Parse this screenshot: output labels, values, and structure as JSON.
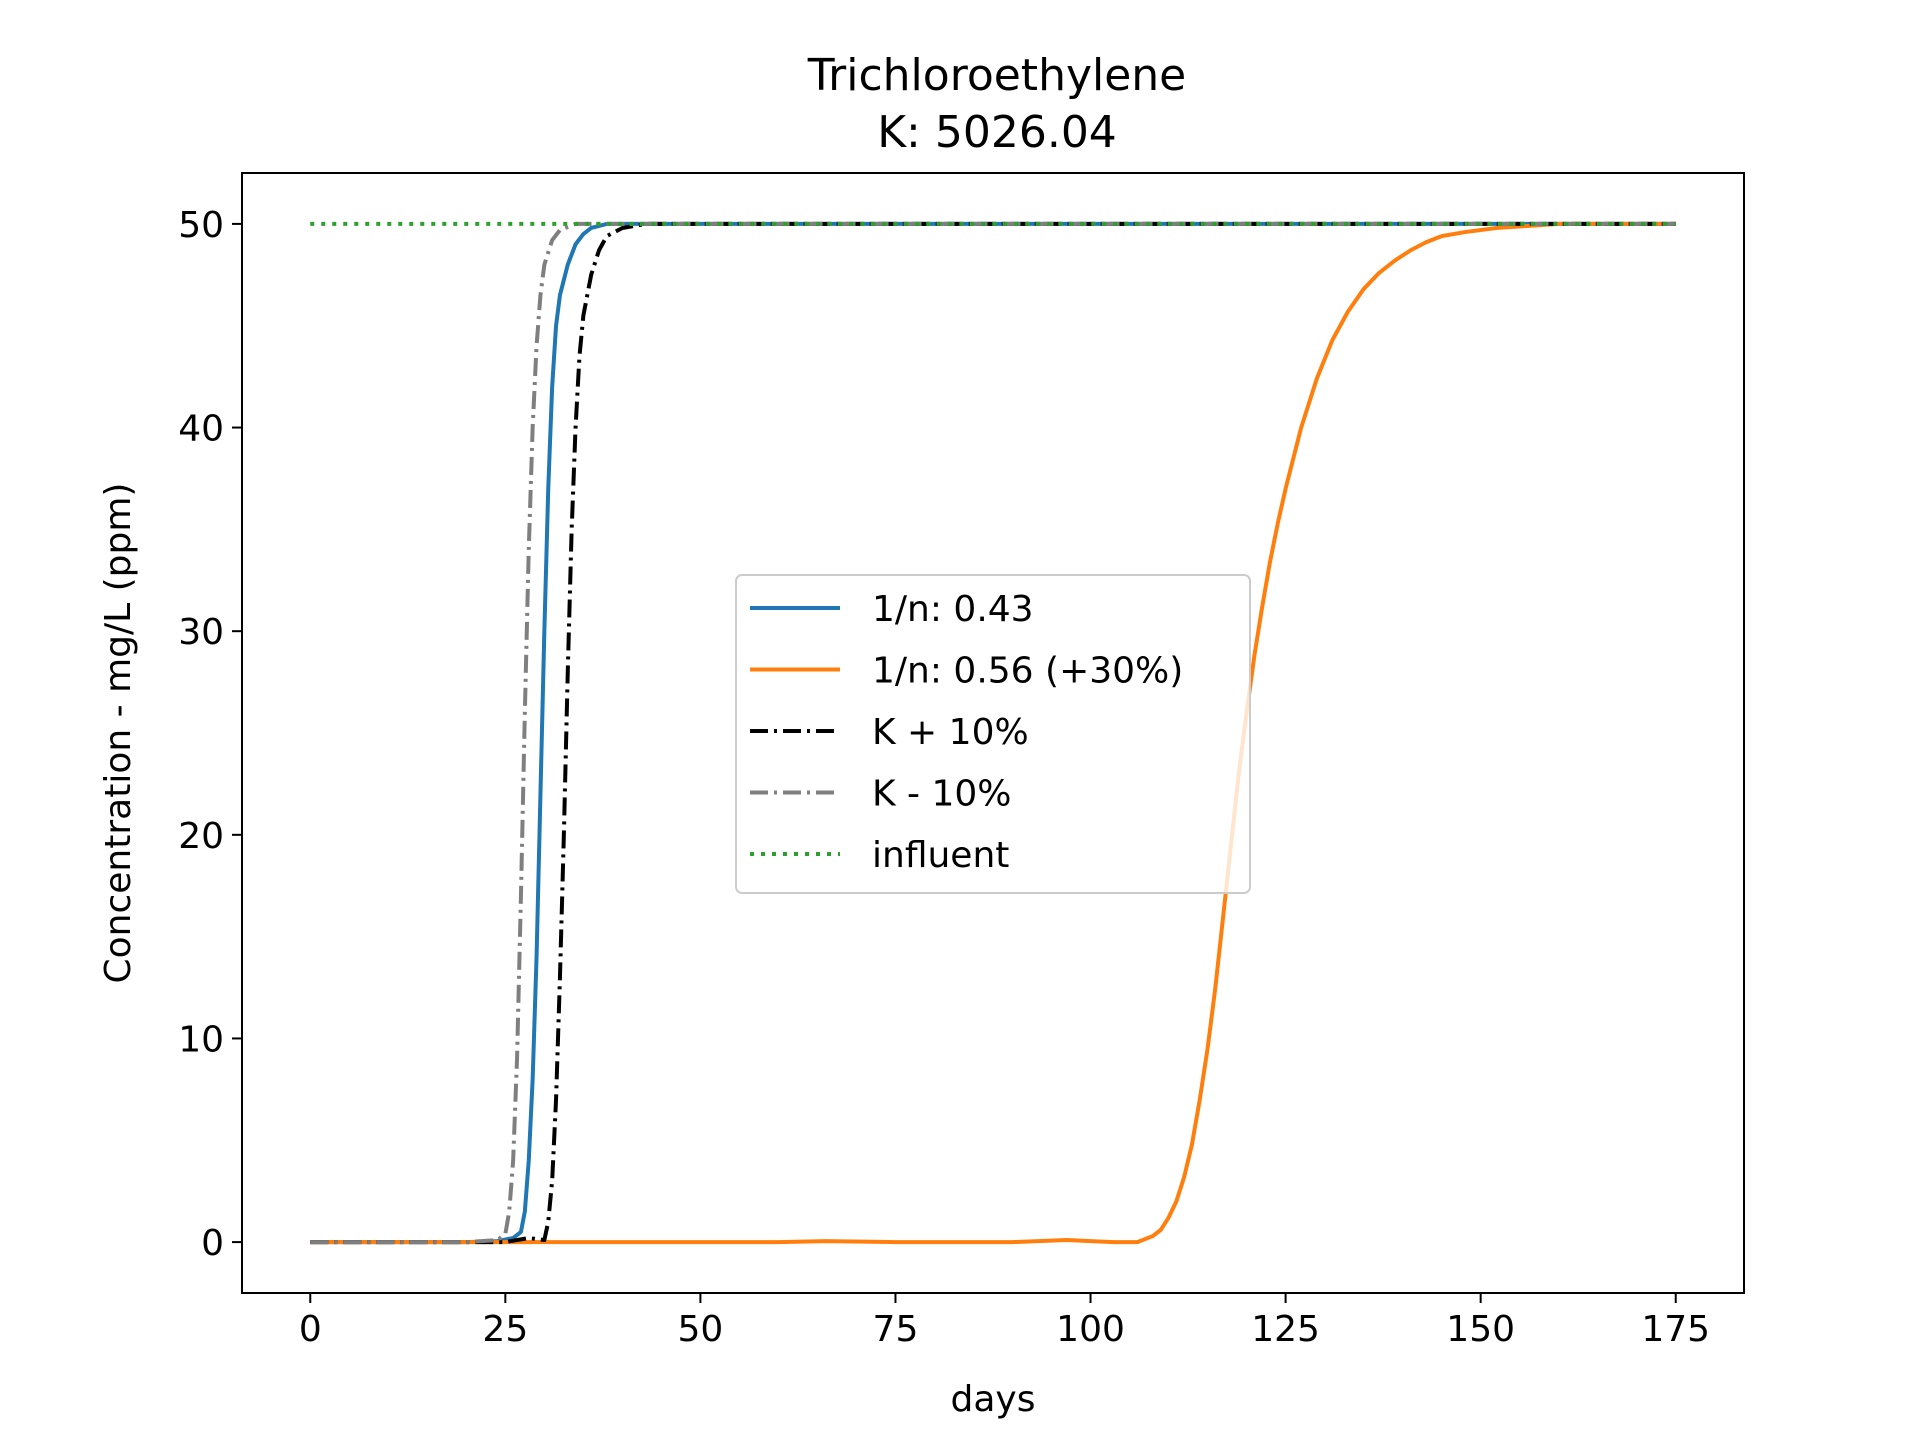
{
  "chart_data": {
    "type": "line",
    "title": "Trichloroethylene",
    "subtitle": "K: 5026.04",
    "xlabel": "days",
    "ylabel": "Concentration - mg/L (ppm)",
    "xlim": [
      -8.75,
      183.75
    ],
    "ylim": [
      -2.5,
      52.5
    ],
    "xticks": [
      0,
      25,
      50,
      75,
      100,
      125,
      150,
      175
    ],
    "yticks": [
      0,
      10,
      20,
      30,
      40,
      50
    ],
    "grid": false,
    "legend_position": "center",
    "series": [
      {
        "name": "1/n: 0.43",
        "color": "#1f77b4",
        "style": "solid",
        "points": [
          [
            0,
            0
          ],
          [
            5,
            0
          ],
          [
            10,
            0
          ],
          [
            15,
            0
          ],
          [
            20,
            0
          ],
          [
            24,
            0.05
          ],
          [
            26,
            0.2
          ],
          [
            27,
            0.5
          ],
          [
            27.5,
            1.5
          ],
          [
            28,
            4
          ],
          [
            28.5,
            8
          ],
          [
            29,
            14
          ],
          [
            29.5,
            22
          ],
          [
            30,
            30
          ],
          [
            30.5,
            37
          ],
          [
            31,
            42
          ],
          [
            31.5,
            45
          ],
          [
            32,
            46.5
          ],
          [
            33,
            48
          ],
          [
            34,
            49
          ],
          [
            35,
            49.5
          ],
          [
            36,
            49.8
          ],
          [
            38,
            50
          ],
          [
            42,
            50
          ],
          [
            60,
            50
          ],
          [
            100,
            50
          ],
          [
            140,
            50
          ],
          [
            175,
            50
          ]
        ]
      },
      {
        "name": "1/n: 0.56 (+30%)",
        "color": "#ff7f0e",
        "style": "solid",
        "points": [
          [
            0,
            0
          ],
          [
            10,
            0
          ],
          [
            20,
            0
          ],
          [
            30,
            0
          ],
          [
            40,
            0
          ],
          [
            50,
            0
          ],
          [
            60,
            0
          ],
          [
            66,
            0.05
          ],
          [
            75,
            0
          ],
          [
            90,
            0
          ],
          [
            97,
            0.1
          ],
          [
            100,
            0.05
          ],
          [
            103,
            0
          ],
          [
            106,
            0
          ],
          [
            108,
            0.3
          ],
          [
            109,
            0.6
          ],
          [
            110,
            1.2
          ],
          [
            111,
            2
          ],
          [
            112,
            3.2
          ],
          [
            113,
            4.8
          ],
          [
            114,
            7
          ],
          [
            115,
            9.5
          ],
          [
            116,
            12.5
          ],
          [
            117,
            16
          ],
          [
            118,
            19.5
          ],
          [
            119,
            23
          ],
          [
            120,
            26
          ],
          [
            121,
            28.8
          ],
          [
            122,
            31.2
          ],
          [
            123,
            33.4
          ],
          [
            124,
            35.3
          ],
          [
            125,
            37
          ],
          [
            127,
            40
          ],
          [
            129,
            42.4
          ],
          [
            131,
            44.3
          ],
          [
            133,
            45.7
          ],
          [
            135,
            46.8
          ],
          [
            137,
            47.6
          ],
          [
            139,
            48.2
          ],
          [
            141,
            48.7
          ],
          [
            143,
            49.1
          ],
          [
            145,
            49.4
          ],
          [
            148,
            49.6
          ],
          [
            152,
            49.8
          ],
          [
            156,
            49.9
          ],
          [
            160,
            50
          ],
          [
            175,
            50
          ]
        ]
      },
      {
        "name": "K + 10%",
        "color": "#000000",
        "style": "dashdot",
        "points": [
          [
            0,
            0
          ],
          [
            5,
            0
          ],
          [
            10,
            0
          ],
          [
            15,
            0
          ],
          [
            20,
            0
          ],
          [
            25,
            0
          ],
          [
            28,
            0.2
          ],
          [
            30,
            0.1
          ],
          [
            30.5,
            1
          ],
          [
            31,
            3
          ],
          [
            31.5,
            7
          ],
          [
            32,
            13
          ],
          [
            32.5,
            20
          ],
          [
            33,
            28
          ],
          [
            33.5,
            35
          ],
          [
            34,
            40
          ],
          [
            34.5,
            43.5
          ],
          [
            35,
            45.5
          ],
          [
            36,
            47.5
          ],
          [
            37,
            48.7
          ],
          [
            38,
            49.4
          ],
          [
            40,
            49.8
          ],
          [
            43,
            50
          ],
          [
            60,
            50
          ],
          [
            100,
            50
          ],
          [
            140,
            50
          ],
          [
            175,
            50
          ]
        ]
      },
      {
        "name": "K - 10%",
        "color": "#7f7f7f",
        "style": "dashdot",
        "points": [
          [
            0,
            0
          ],
          [
            5,
            0
          ],
          [
            10,
            0
          ],
          [
            15,
            0
          ],
          [
            20,
            0
          ],
          [
            24,
            0.1
          ],
          [
            25,
            0.4
          ],
          [
            25.5,
            1.5
          ],
          [
            26,
            4
          ],
          [
            26.5,
            9
          ],
          [
            27,
            17
          ],
          [
            27.5,
            26
          ],
          [
            28,
            34
          ],
          [
            28.5,
            40
          ],
          [
            29,
            44
          ],
          [
            29.5,
            46.5
          ],
          [
            30,
            48
          ],
          [
            31,
            49.2
          ],
          [
            32,
            49.7
          ],
          [
            34,
            50
          ],
          [
            40,
            50
          ],
          [
            60,
            50
          ],
          [
            100,
            50
          ],
          [
            140,
            50
          ],
          [
            175,
            50
          ]
        ]
      },
      {
        "name": "influent",
        "color": "#2ca02c",
        "style": "dotted",
        "points": [
          [
            0,
            50
          ],
          [
            175,
            50
          ]
        ]
      }
    ]
  }
}
